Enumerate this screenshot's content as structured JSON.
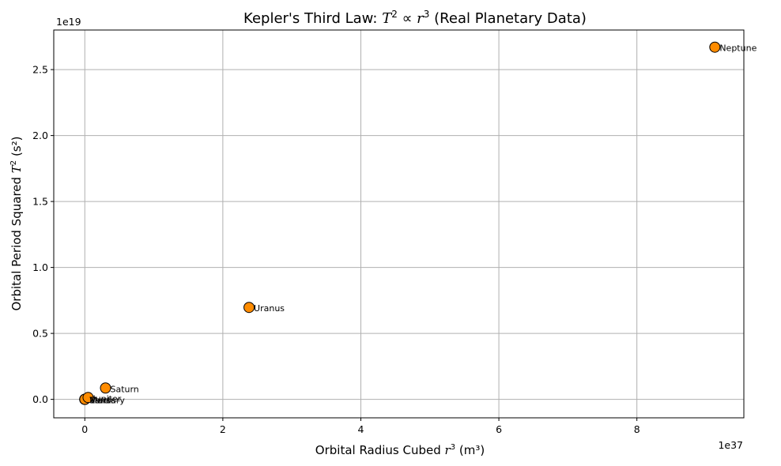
{
  "chart_data": {
    "type": "scatter",
    "title_parts": [
      "Kepler's Third Law: ",
      "T",
      "2",
      " ∝ ",
      "r",
      "3",
      " (Real Planetary Data)"
    ],
    "xlabel_parts": [
      "Orbital Radius Cubed ",
      "r",
      "3",
      " (m³)"
    ],
    "ylabel_parts": [
      "Orbital Period Squared ",
      "T",
      "2",
      " (s²)"
    ],
    "x_offset_label": "1e37",
    "y_offset_label": "1e19",
    "x_scale": 1e+37,
    "y_scale": 1e+19,
    "xlim": [
      -0.45,
      9.55
    ],
    "ylim": [
      -0.14,
      2.8
    ],
    "x_ticks": [
      0,
      2,
      4,
      6,
      8
    ],
    "x_tick_labels": [
      "0",
      "2",
      "4",
      "6",
      "8"
    ],
    "y_ticks": [
      0.0,
      0.5,
      1.0,
      1.5,
      2.0,
      2.5
    ],
    "y_tick_labels": [
      "0.0",
      "0.5",
      "1.0",
      "1.5",
      "2.0",
      "2.5"
    ],
    "grid": true,
    "marker_color": "#ff8c00",
    "marker_edge": "#000000",
    "points": [
      {
        "name": "Mercury",
        "x": 1.94e+32,
        "y": 57900000000000.0
      },
      {
        "name": "Venus",
        "x": 1.56e+33,
        "y": 378000000000000.0
      },
      {
        "name": "Earth",
        "x": 3.35e+33,
        "y": 996000000000000.0
      },
      {
        "name": "Mars",
        "x": 1.14e+34,
        "y": 3530000000000000.0
      },
      {
        "name": "Jupiter",
        "x": 4.78e+35,
        "y": 1.4e+17
      },
      {
        "name": "Saturn",
        "x": 3e+36,
        "y": 8.6e+17
      },
      {
        "name": "Uranus",
        "x": 2.38e+37,
        "y": 6.97e+18
      },
      {
        "name": "Neptune",
        "x": 9.13e+37,
        "y": 2.67e+19
      }
    ]
  }
}
